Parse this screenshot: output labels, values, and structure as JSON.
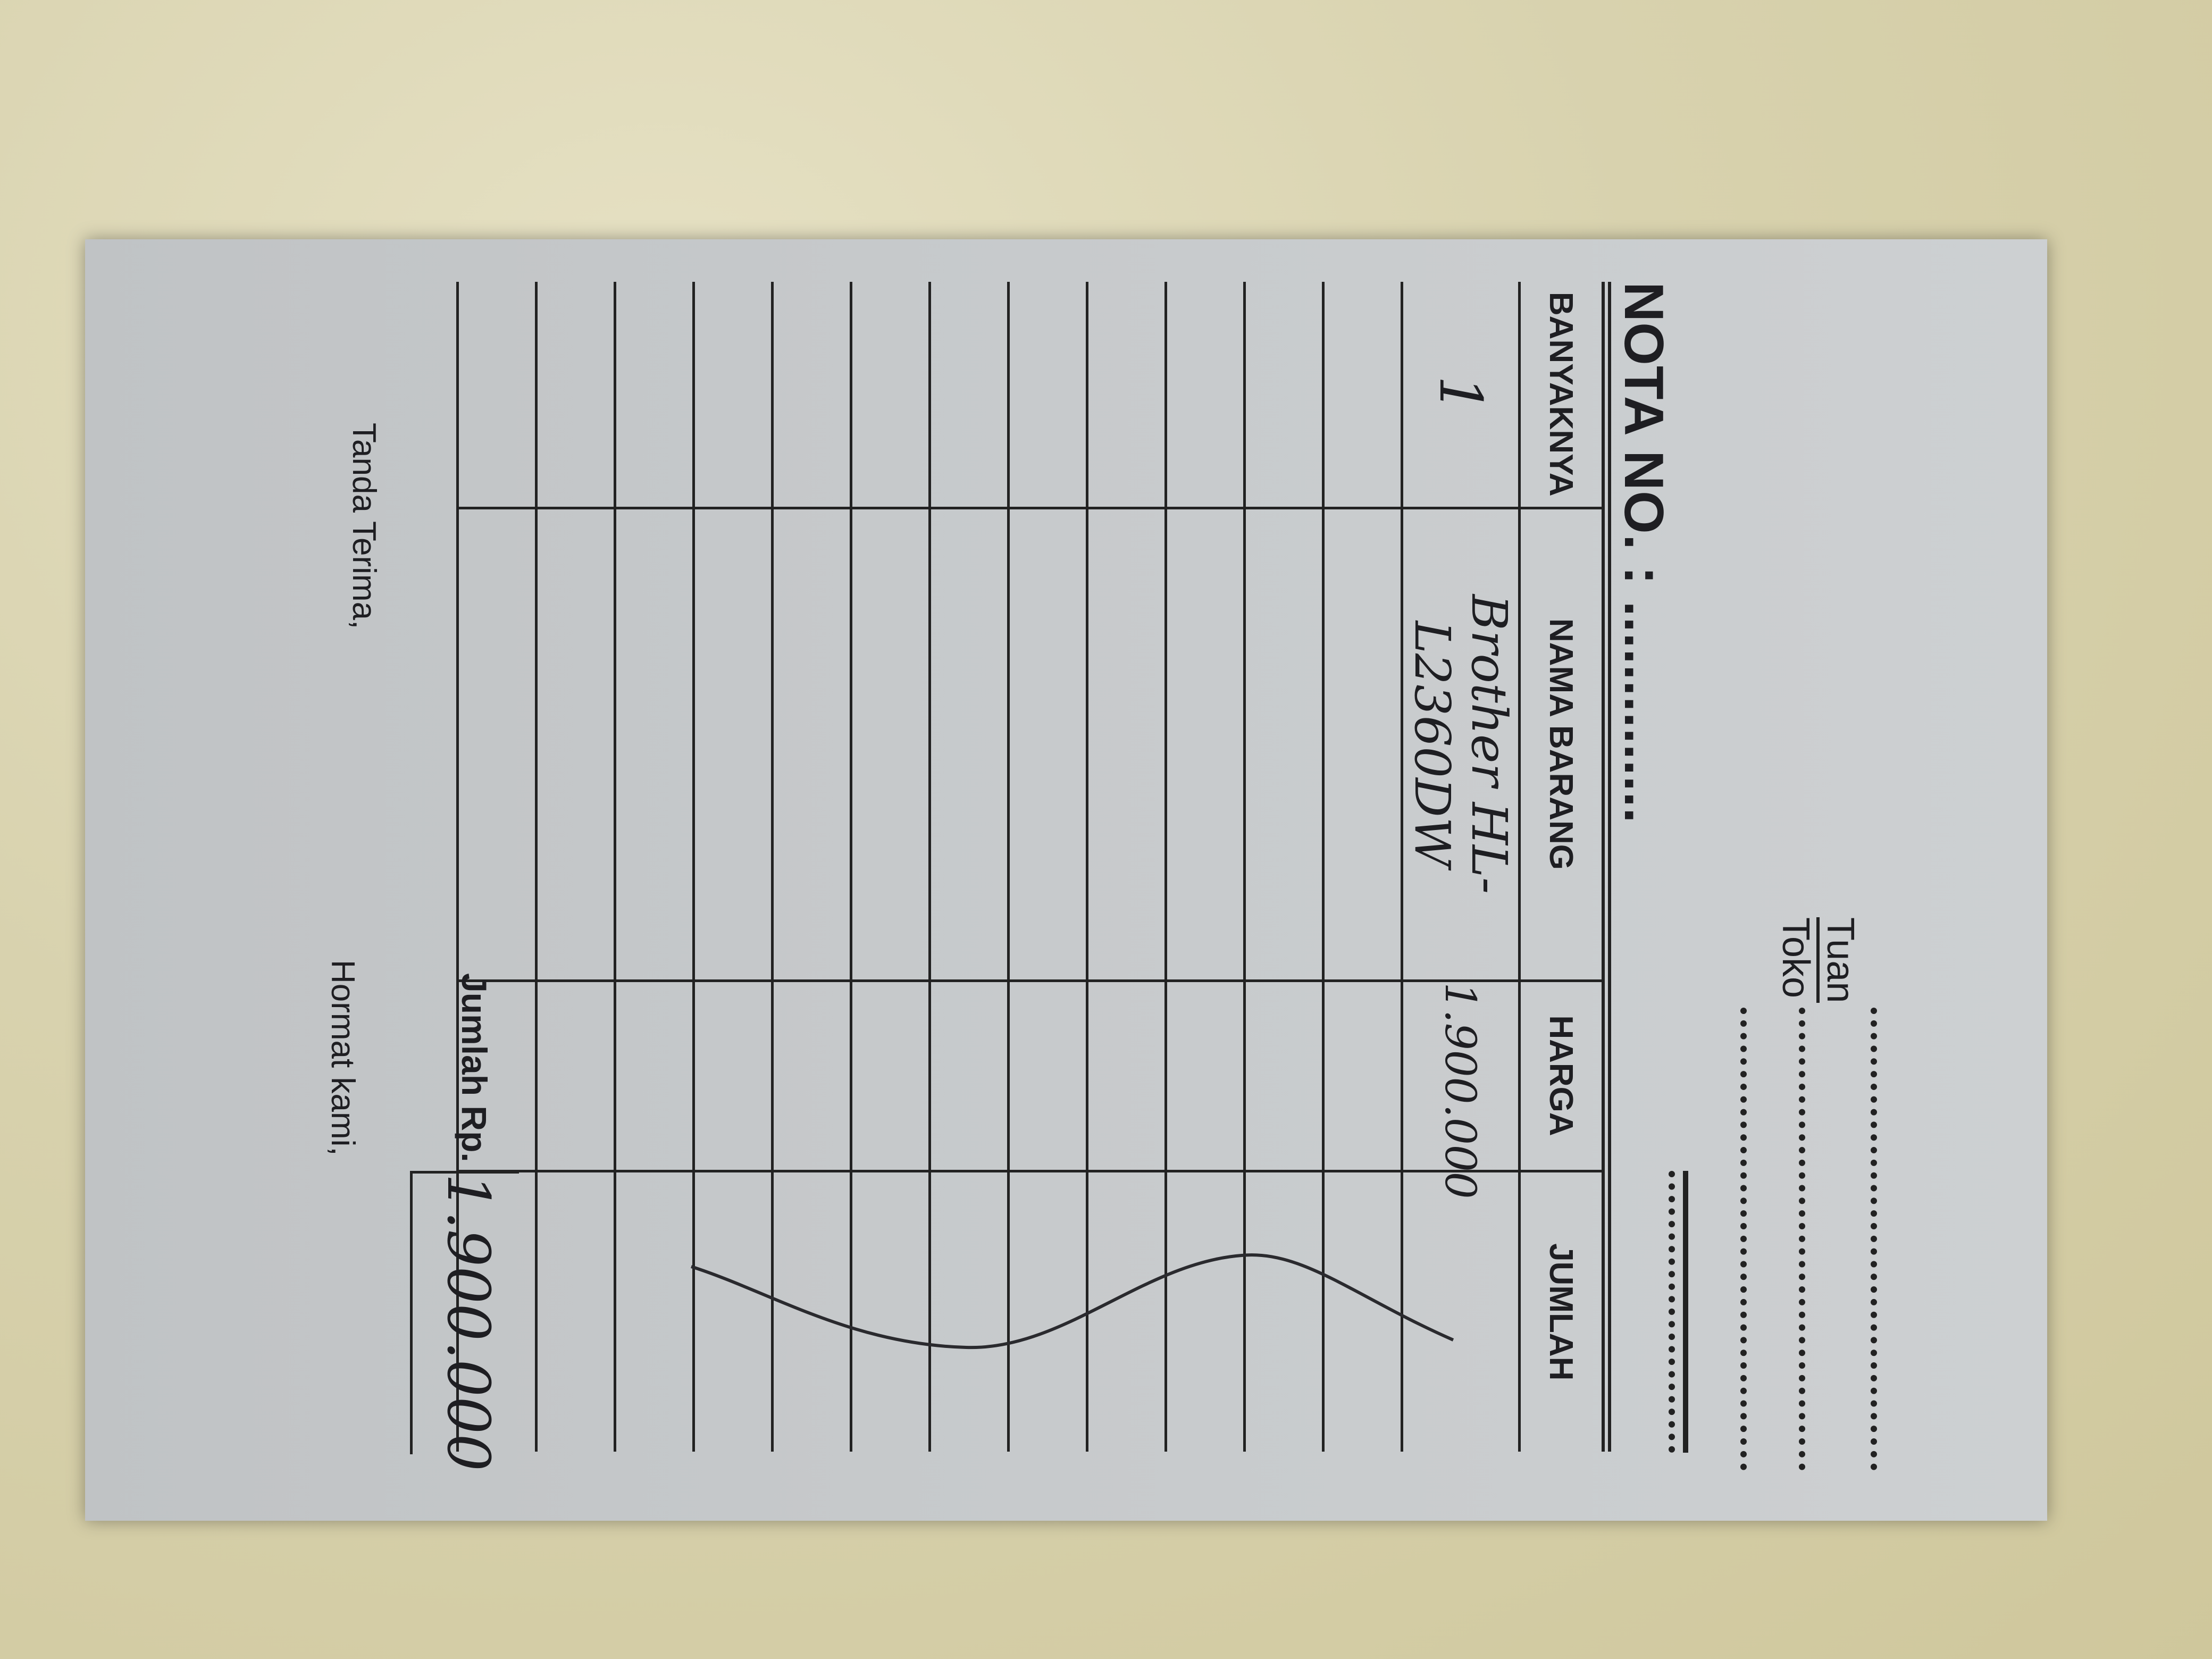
{
  "header": {
    "tuan_label": "Tuan",
    "toko_label": "Toko"
  },
  "title": "NOTA NO. : ..............",
  "table": {
    "columns": [
      "BANYAKNYA",
      "NAMA BARANG",
      "HARGA",
      "JUMLAH"
    ],
    "rows": [
      {
        "qty": "1",
        "item": "Brother HL-L2360DW",
        "price": "1.900.000",
        "amount": ""
      }
    ],
    "empty_rows": 12
  },
  "total": {
    "label": "Jumlah Rp.",
    "value": "1.900.000"
  },
  "footer": {
    "received_label": "Tanda Terima,",
    "regards_label": "Hormat kami,"
  },
  "colors": {
    "paper": "#c9cbcc",
    "ink": "#1e1e22",
    "background": "#d8d2ae"
  }
}
